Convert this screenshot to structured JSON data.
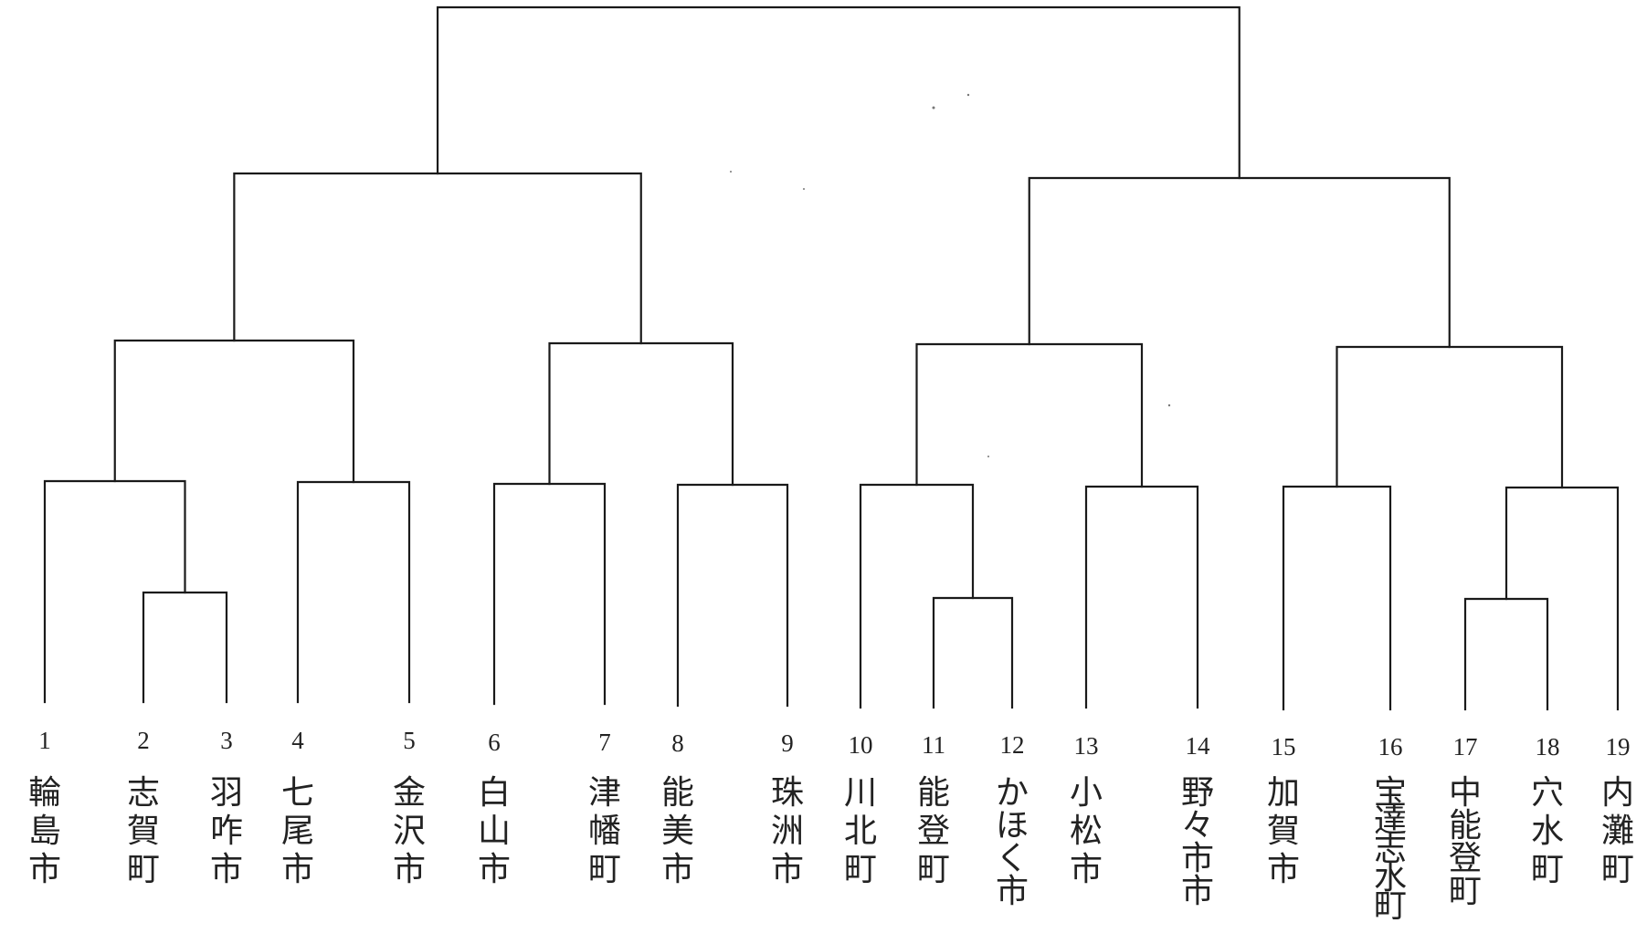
{
  "leaves": [
    {
      "num": "1",
      "name": "輪島市"
    },
    {
      "num": "2",
      "name": "志賀町"
    },
    {
      "num": "3",
      "name": "羽咋市"
    },
    {
      "num": "4",
      "name": "七尾市"
    },
    {
      "num": "5",
      "name": "金沢市"
    },
    {
      "num": "6",
      "name": "白山市"
    },
    {
      "num": "7",
      "name": "津幡町"
    },
    {
      "num": "8",
      "name": "能美市"
    },
    {
      "num": "9",
      "name": "珠洲市"
    },
    {
      "num": "10",
      "name": "川北町"
    },
    {
      "num": "11",
      "name": "能登町"
    },
    {
      "num": "12",
      "name": "かほく市"
    },
    {
      "num": "13",
      "name": "小松市"
    },
    {
      "num": "14",
      "name": "野々市市"
    },
    {
      "num": "15",
      "name": "加賀市"
    },
    {
      "num": "16",
      "name": "宝達志水町"
    },
    {
      "num": "17",
      "name": "中能登町"
    },
    {
      "num": "18",
      "name": "穴水町"
    },
    {
      "num": "19",
      "name": "内灘町"
    }
  ],
  "merges": [
    {
      "children": [
        2,
        3
      ],
      "level": 1
    },
    {
      "children": [
        11,
        12
      ],
      "level": 1
    },
    {
      "children": [
        17,
        18
      ],
      "level": 1
    },
    {
      "children": [
        1,
        "2+3"
      ],
      "level": 2
    },
    {
      "children": [
        4,
        5
      ],
      "level": 2
    },
    {
      "children": [
        6,
        7
      ],
      "level": 2
    },
    {
      "children": [
        8,
        9
      ],
      "level": 2
    },
    {
      "children": [
        10,
        "11+12"
      ],
      "level": 2
    },
    {
      "children": [
        13,
        14
      ],
      "level": 2
    },
    {
      "children": [
        15,
        16
      ],
      "level": 2
    },
    {
      "children": [
        "17+18",
        19
      ],
      "level": 2
    },
    {
      "children": [
        "1-3",
        "4-5"
      ],
      "level": 3
    },
    {
      "children": [
        "6-7",
        "8-9"
      ],
      "level": 3
    },
    {
      "children": [
        "10-12",
        "13-14"
      ],
      "level": 3
    },
    {
      "children": [
        "15-16",
        "17-19"
      ],
      "level": 3
    },
    {
      "children": [
        "1-5",
        "6-9"
      ],
      "level": 4
    },
    {
      "children": [
        "10-14",
        "15-19"
      ],
      "level": 4
    },
    {
      "children": [
        "1-9",
        "10-19"
      ],
      "level": 5
    }
  ]
}
